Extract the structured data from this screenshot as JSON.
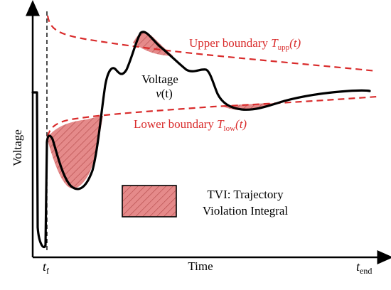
{
  "axes": {
    "y_label": "Voltage",
    "x_label": "Time",
    "t_fault": {
      "main": "t",
      "sub": "f"
    },
    "t_end": {
      "main": "t",
      "sub": "end"
    }
  },
  "curves": {
    "voltage": {
      "label_line1": "Voltage",
      "label_var": "v",
      "label_arg": "(t)"
    },
    "upper_boundary": {
      "text": "Upper boundary ",
      "sym": "T",
      "sub": "upp",
      "arg": "(t)"
    },
    "lower_boundary": {
      "text": "Lower boundary ",
      "sym": "T",
      "sub": "low",
      "arg": "(t)"
    }
  },
  "legend": {
    "line1": "TVI: Trajectory",
    "line2": "Violation Integral"
  },
  "colors": {
    "boundary": "#d92b2b",
    "violation_fill": "#e37a7a",
    "voltage": "#000000"
  }
}
